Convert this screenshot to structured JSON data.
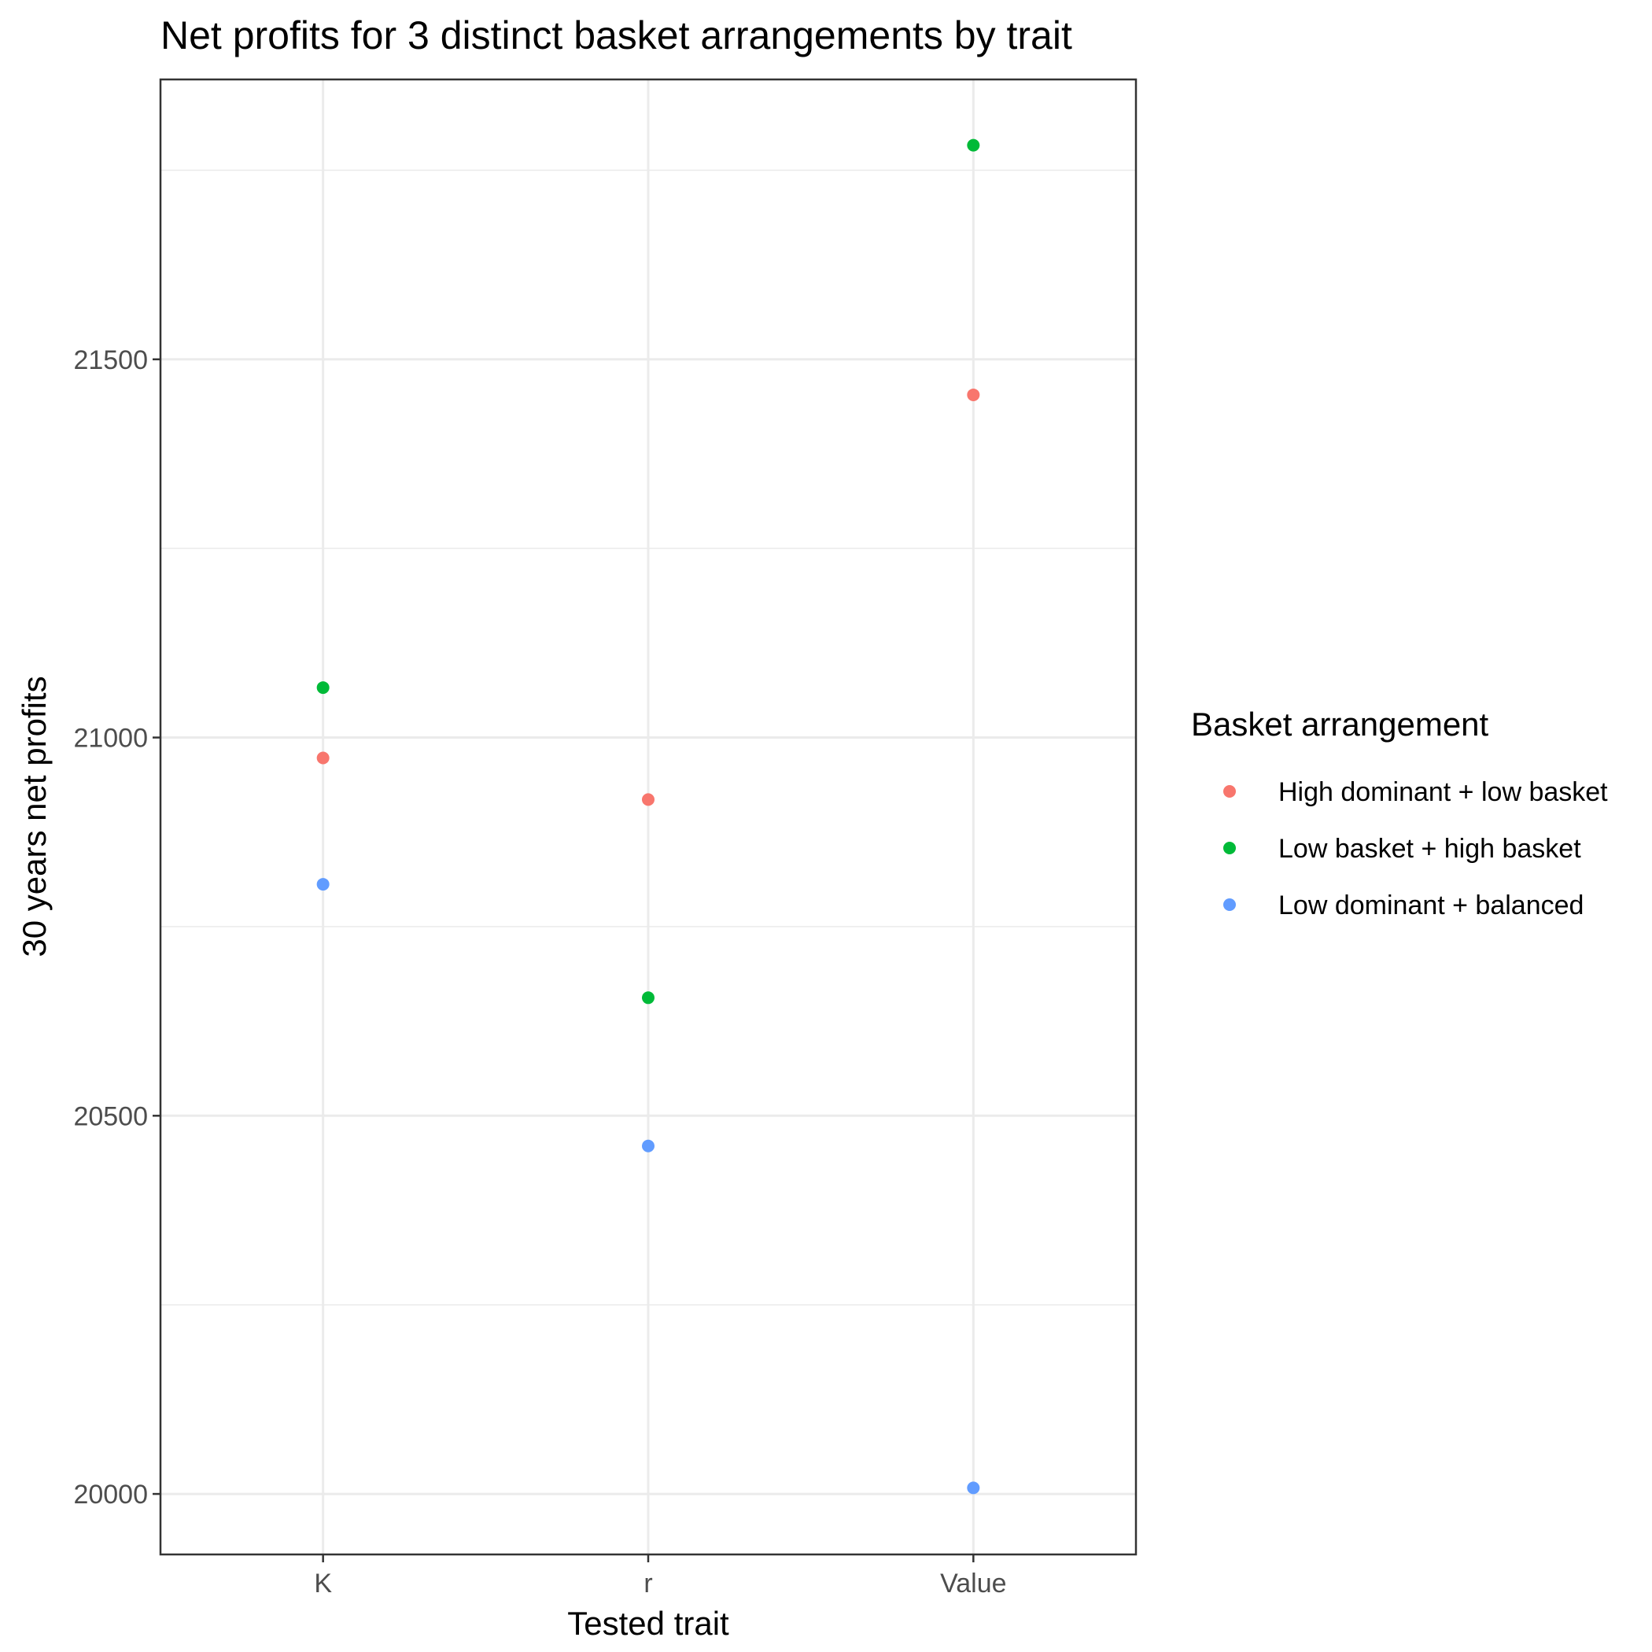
{
  "chart_data": {
    "type": "scatter",
    "title": "Net profits for 3 distinct basket arrangements by trait",
    "xlabel": "Tested trait",
    "ylabel": "30 years net profits",
    "categories": [
      "K",
      "r",
      "Value"
    ],
    "ylim": [
      19920,
      21870
    ],
    "yticks": [
      20000,
      20500,
      21000,
      21500
    ],
    "grid": true,
    "legend": {
      "title": "Basket arrangement",
      "position": "right"
    },
    "series": [
      {
        "name": "High dominant + low basket",
        "color": "#F8766D",
        "values": [
          20973,
          20918,
          21453
        ]
      },
      {
        "name": "Low basket + high basket",
        "color": "#00BA38",
        "values": [
          21066,
          20656,
          21783
        ]
      },
      {
        "name": "Low dominant + balanced",
        "color": "#619CFF",
        "values": [
          20806,
          20460,
          20008
        ]
      }
    ]
  }
}
